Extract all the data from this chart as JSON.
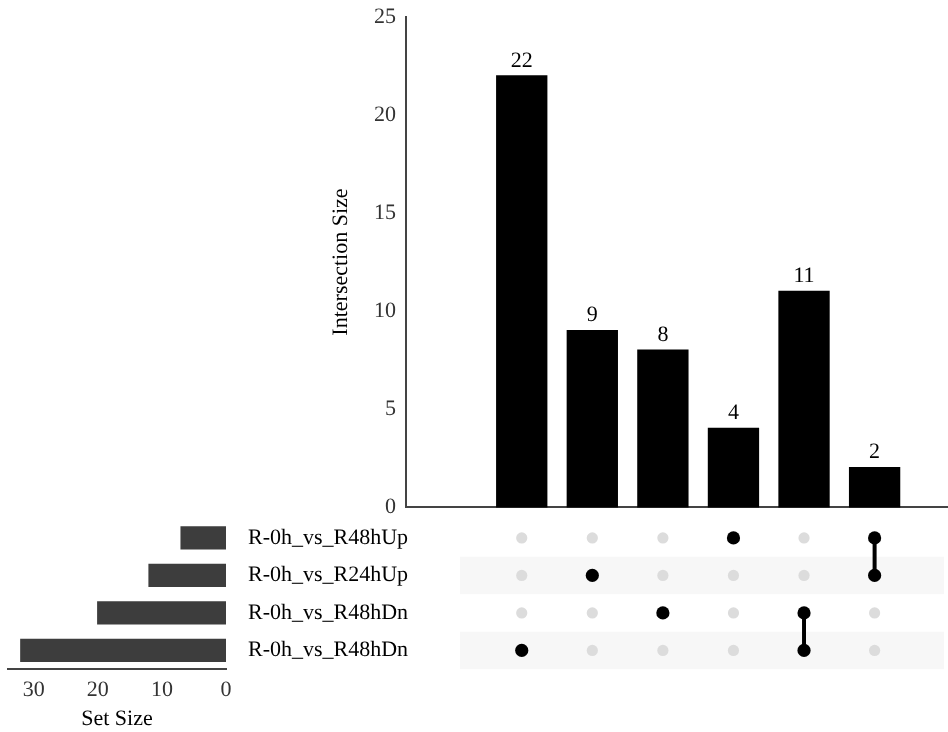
{
  "chart_data": [
    {
      "type": "bar",
      "categories": [
        null,
        null,
        null,
        null,
        null,
        null
      ],
      "values": [
        22,
        9,
        8,
        4,
        11,
        2
      ],
      "color": "#000000",
      "ylabel": "Intersection Size",
      "ylim": [
        0,
        25
      ],
      "yticks": [
        0,
        5,
        10,
        15,
        20,
        25
      ],
      "grid": false,
      "legend": false,
      "data_labels": true
    },
    {
      "type": "bar",
      "orientation": "horizontal",
      "categories": [
        "R-0h_vs_R48hUp",
        "R-0h_vs_R24hUp",
        "R-0h_vs_R48hDn",
        "R-0h_vs_R48hDn"
      ],
      "values": [
        7,
        12,
        20,
        32
      ],
      "color": "#3d3d3d",
      "xlabel": "Set Size",
      "xlim": [
        34,
        0
      ],
      "xticks": [
        30,
        20,
        10,
        0
      ],
      "grid": false,
      "legend": false
    }
  ]
}
